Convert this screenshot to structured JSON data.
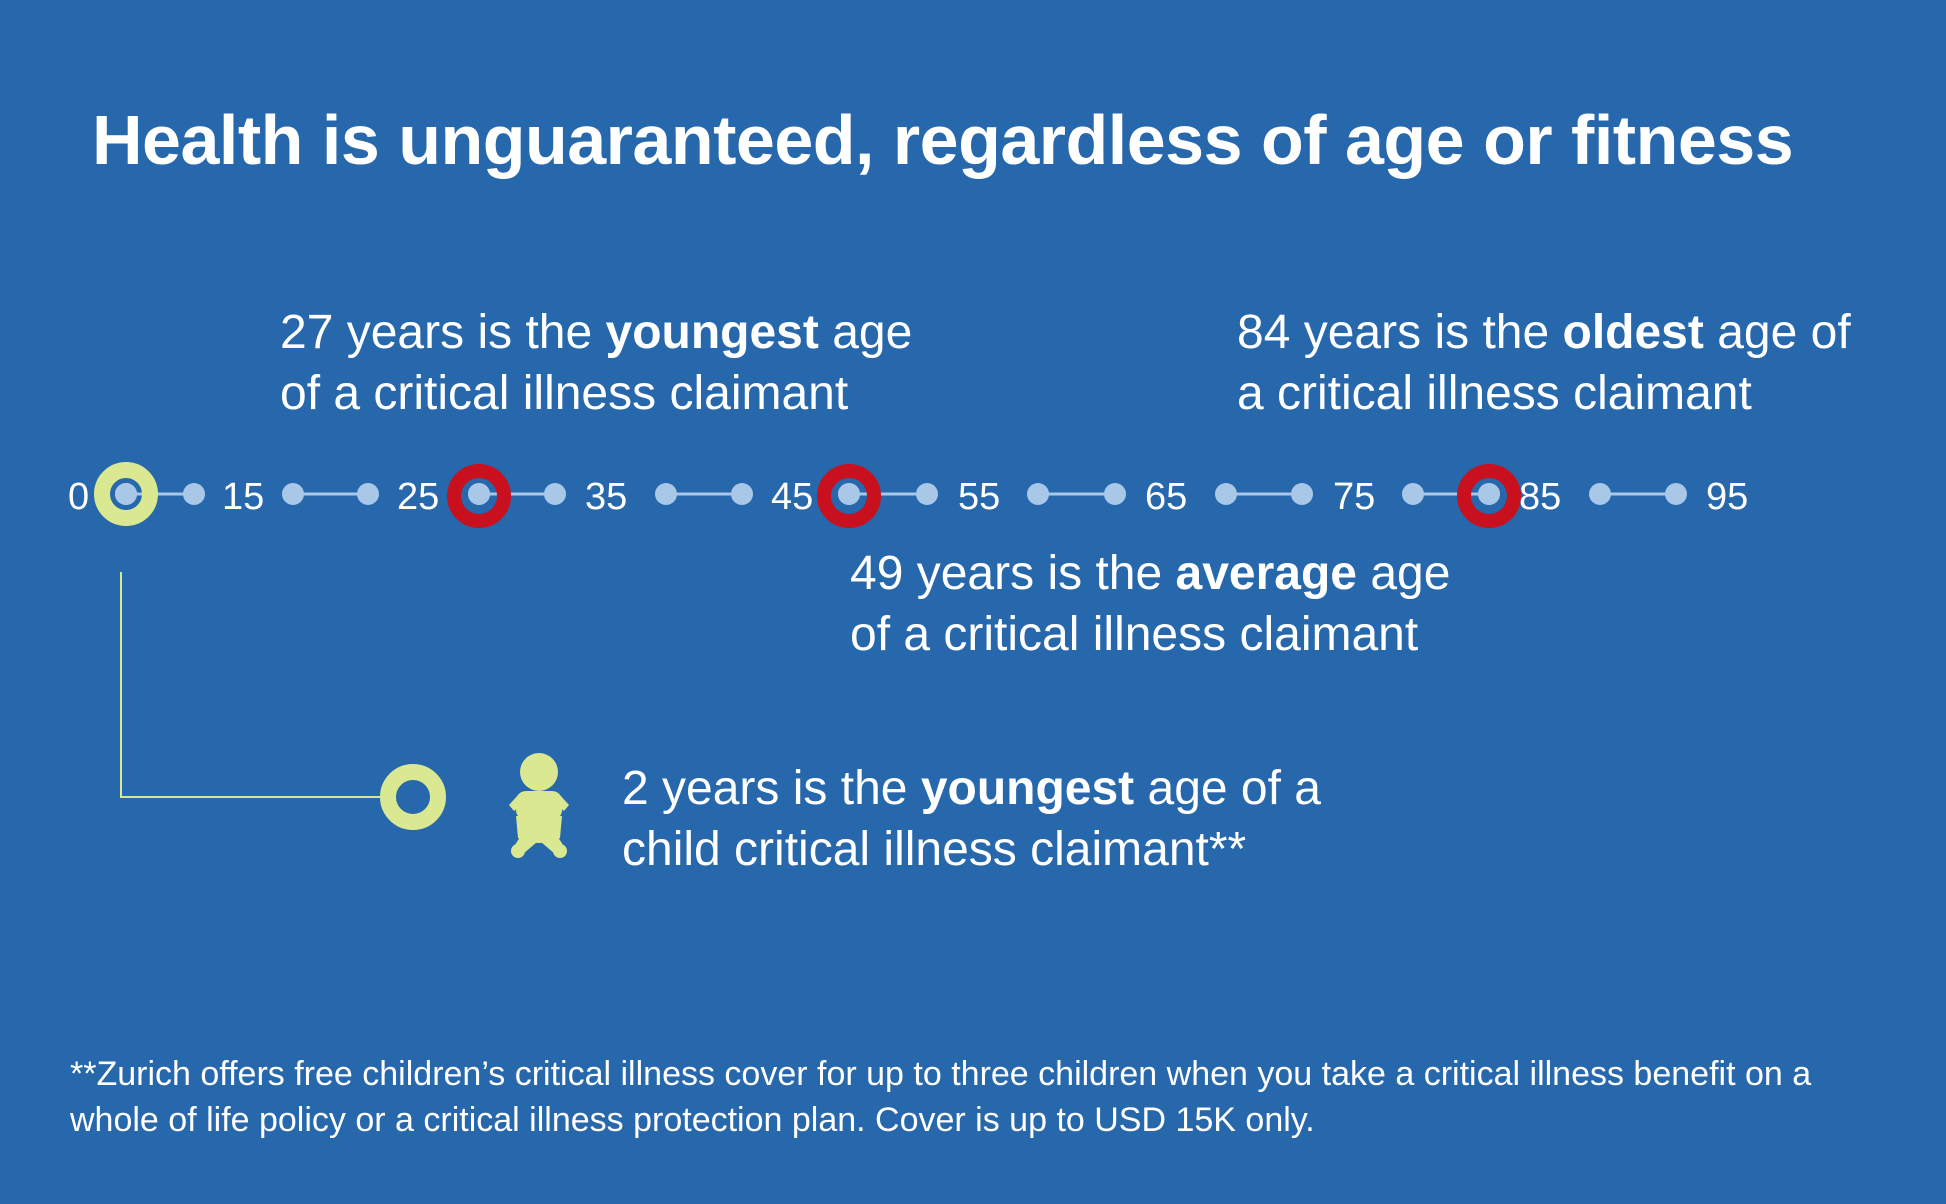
{
  "title": "Health is unguaranteed, regardless of age or fitness",
  "colors": {
    "background": "#2767ac",
    "dot": "#a9c8e8",
    "highlight_ring": "#c8101e",
    "child_marker": "#dbe892",
    "text": "#ffffff"
  },
  "timeline": {
    "start_label": "0",
    "ticks": [
      "15",
      "25",
      "35",
      "45",
      "55",
      "65",
      "75",
      "85",
      "95"
    ],
    "highlighted_ages": [
      27,
      49,
      84
    ],
    "start_marker_age": 0
  },
  "callouts": {
    "youngest": {
      "age": "27",
      "pre": " years is the ",
      "emphasis": "youngest",
      "post": " age",
      "line2": "of a critical illness claimant"
    },
    "oldest": {
      "age": "84",
      "pre": " years is the ",
      "emphasis": "oldest",
      "post": " age of",
      "line2": "a critical illness claimant"
    },
    "average": {
      "age": "49",
      "pre": " years is the ",
      "emphasis": "average",
      "post": " age",
      "line2": "of a critical illness claimant"
    },
    "child": {
      "age": "2",
      "pre": " years is the ",
      "emphasis": "youngest",
      "post": " age of a",
      "line2": "child critical illness claimant**",
      "icon": "baby-icon"
    }
  },
  "footnote": "**Zurich offers free children’s critical illness cover for up to three children when you take a critical illness benefit on a whole of life policy or a critical illness protection plan. Cover is up to USD 15K only."
}
